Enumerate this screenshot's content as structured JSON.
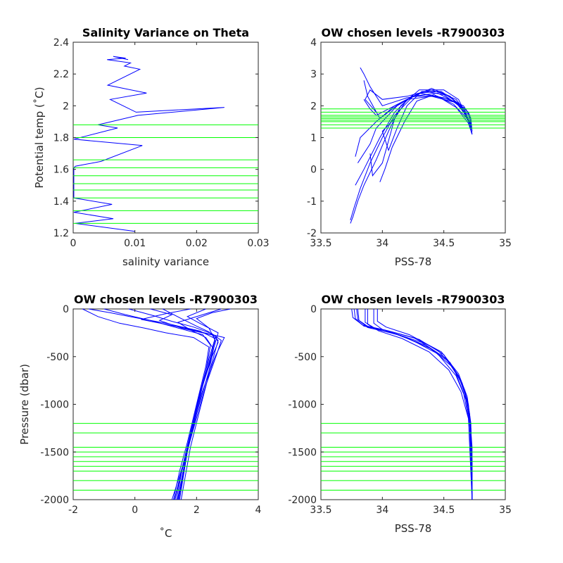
{
  "chart_data": [
    {
      "id": "tl",
      "type": "line",
      "title": "Salinity Variance on Theta",
      "xlabel": "salinity variance",
      "ylabel": "Potential temp (˚C)",
      "xlim": [
        0,
        0.03
      ],
      "ylim": [
        1.2,
        2.4
      ],
      "xticks": [
        0,
        0.01,
        0.02,
        0.03
      ],
      "xtick_labels": [
        "0",
        "0.01",
        "0.02",
        "0.03"
      ],
      "yticks": [
        1.2,
        1.4,
        1.6,
        1.8,
        2,
        2.2,
        2.4
      ],
      "ytick_labels": [
        "1.2",
        "1.4",
        "1.6",
        "1.8",
        "2",
        "2.2",
        "2.4"
      ],
      "series": [
        {
          "color": "#0000ff",
          "x": [
            0.01,
            0.0003,
            0.0065,
            0.0001,
            0.0063,
            0.0001,
            0.0001,
            0.0001,
            0.0001,
            0.0001,
            0.0001,
            0.0001,
            0.0004,
            0.0045,
            0.0112,
            0.0001,
            0.0072,
            0.004,
            0.0105,
            0.0245,
            0.0102,
            0.006,
            0.0119,
            0.0056,
            0.0108,
            0.0083,
            0.0093,
            0.0055,
            0.0085,
            0.0065,
            0.0089
          ],
          "y": [
            1.21,
            1.26,
            1.29,
            1.33,
            1.38,
            1.42,
            1.46,
            1.51,
            1.56,
            1.58,
            1.6,
            1.61,
            1.62,
            1.65,
            1.75,
            1.79,
            1.86,
            1.88,
            1.94,
            1.99,
            1.96,
            2.04,
            2.08,
            2.13,
            2.23,
            2.25,
            2.27,
            2.29,
            2.3,
            2.31,
            2.29
          ]
        }
      ],
      "hlines": {
        "color": "#00ff00",
        "values": [
          1.26,
          1.34,
          1.42,
          1.47,
          1.51,
          1.56,
          1.61,
          1.66,
          1.8,
          1.88
        ]
      }
    },
    {
      "id": "tr",
      "type": "line",
      "title": "OW chosen levels -R7900303",
      "xlabel": "PSS-78",
      "ylabel": "",
      "xlim": [
        33.5,
        35
      ],
      "ylim": [
        -2,
        4
      ],
      "xticks": [
        33.5,
        34,
        34.5,
        35
      ],
      "xtick_labels": [
        "33.5",
        "34",
        "34.5",
        "35"
      ],
      "yticks": [
        -2,
        -1,
        0,
        1,
        2,
        3,
        4
      ],
      "ytick_labels": [
        "-2",
        "-1",
        "0",
        "1",
        "2",
        "3",
        "4"
      ],
      "series": [
        {
          "color": "#0000ff",
          "x": [
            34.73,
            34.72,
            34.7,
            34.6,
            34.4,
            34.2,
            34.05,
            33.95,
            33.9,
            33.85
          ],
          "y": [
            1.2,
            1.6,
            1.8,
            2.1,
            2.3,
            2.2,
            1.9,
            1.7,
            1.9,
            2.2
          ]
        },
        {
          "color": "#0000ff",
          "x": [
            34.73,
            34.72,
            34.68,
            34.55,
            34.35,
            34.2,
            34.0,
            33.9,
            33.85,
            33.82
          ],
          "y": [
            1.1,
            1.5,
            1.9,
            2.2,
            2.35,
            2.25,
            2.0,
            2.6,
            3.0,
            3.2
          ]
        },
        {
          "color": "#0000ff",
          "x": [
            34.72,
            34.71,
            34.66,
            34.5,
            34.3,
            34.15,
            33.98,
            33.88,
            33.85
          ],
          "y": [
            1.3,
            1.7,
            2.0,
            2.25,
            2.4,
            2.1,
            1.6,
            2.3,
            2.8
          ]
        },
        {
          "color": "#0000ff",
          "x": [
            34.72,
            34.68,
            34.6,
            34.45,
            34.3,
            34.12,
            33.95,
            33.9,
            33.8
          ],
          "y": [
            1.25,
            1.8,
            2.2,
            2.45,
            2.4,
            2.0,
            1.3,
            0.8,
            0.2
          ]
        },
        {
          "color": "#0000ff",
          "x": [
            34.72,
            34.66,
            34.55,
            34.4,
            34.25,
            34.1,
            33.98,
            33.85,
            33.78
          ],
          "y": [
            1.4,
            1.9,
            2.3,
            2.5,
            2.35,
            1.8,
            1.0,
            0.0,
            -0.5
          ]
        },
        {
          "color": "#0000ff",
          "x": [
            34.71,
            34.62,
            34.5,
            34.3,
            34.15,
            34.05,
            33.95,
            33.85,
            33.8,
            33.76,
            33.74
          ],
          "y": [
            1.5,
            2.2,
            2.5,
            2.5,
            2.0,
            1.2,
            0.3,
            -0.5,
            -1.0,
            -1.5,
            -1.7
          ]
        },
        {
          "color": "#0000ff",
          "x": [
            34.7,
            34.6,
            34.45,
            34.25,
            34.1,
            34.0,
            33.9,
            33.82,
            33.77,
            33.74
          ],
          "y": [
            1.6,
            2.1,
            2.4,
            2.3,
            1.7,
            1.0,
            0.2,
            -0.6,
            -1.2,
            -1.6
          ]
        },
        {
          "color": "#0000ff",
          "x": [
            34.69,
            34.55,
            34.4,
            34.2,
            34.1,
            34.05,
            34.0,
            33.92,
            33.9
          ],
          "y": [
            1.7,
            2.3,
            2.55,
            2.2,
            1.6,
            0.9,
            0.2,
            -0.2,
            0.5
          ]
        },
        {
          "color": "#0000ff",
          "x": [
            34.7,
            34.58,
            34.42,
            34.28,
            34.18,
            34.08,
            34.02,
            33.98
          ],
          "y": [
            1.55,
            2.05,
            2.35,
            2.15,
            1.5,
            0.7,
            0.0,
            -0.4
          ]
        },
        {
          "color": "#0000ff",
          "x": [
            34.72,
            34.64,
            34.5,
            34.35,
            34.2,
            34.0,
            33.9,
            33.86,
            33.95
          ],
          "y": [
            1.35,
            1.95,
            2.35,
            2.45,
            2.3,
            2.2,
            2.5,
            2.2,
            1.8
          ]
        },
        {
          "color": "#0000ff",
          "x": [
            34.73,
            34.7,
            34.6,
            34.45,
            34.25,
            34.1,
            33.95,
            33.82,
            33.78
          ],
          "y": [
            1.1,
            1.45,
            1.95,
            2.3,
            2.3,
            2.0,
            1.5,
            1.0,
            0.4
          ]
        },
        {
          "color": "#0000ff",
          "x": [
            34.71,
            34.63,
            34.48,
            34.32,
            34.2,
            34.12,
            34.05,
            34.0,
            34.1
          ],
          "y": [
            1.45,
            2.05,
            2.45,
            2.45,
            2.0,
            1.3,
            0.6,
            1.2,
            1.6
          ]
        }
      ],
      "hlines": {
        "color": "#00ff00",
        "values": [
          1.3,
          1.4,
          1.5,
          1.55,
          1.6,
          1.65,
          1.7,
          1.8,
          1.9
        ]
      }
    },
    {
      "id": "bl",
      "type": "line",
      "title": "OW chosen levels -R7900303",
      "xlabel": "˚C",
      "ylabel": "Pressure (dbar)",
      "xlim": [
        -2,
        4
      ],
      "ylim": [
        -2000,
        0
      ],
      "xticks": [
        -2,
        0,
        2,
        4
      ],
      "xtick_labels": [
        "-2",
        "0",
        "2",
        "4"
      ],
      "yticks": [
        -2000,
        -1500,
        -1000,
        -500,
        0
      ],
      "ytick_labels": [
        "-2000",
        "-1500",
        "-1000",
        "-500",
        "0"
      ],
      "series": [
        {
          "color": "#0000ff",
          "x": [
            -1.7,
            -1.2,
            -0.5,
            0.3,
            1.0,
            1.9,
            2.4,
            2.3,
            2.0,
            1.7,
            1.45,
            1.25
          ],
          "y": [
            0,
            -80,
            -150,
            -200,
            -250,
            -300,
            -400,
            -600,
            -1000,
            -1400,
            -1700,
            -2000
          ]
        },
        {
          "color": "#0000ff",
          "x": [
            0.5,
            1.2,
            0.8,
            1.5,
            2.6,
            2.7,
            2.5,
            2.1,
            1.8,
            1.55,
            1.35
          ],
          "y": [
            0,
            -60,
            -120,
            -200,
            -280,
            -350,
            -500,
            -900,
            -1300,
            -1650,
            -2000
          ]
        },
        {
          "color": "#0000ff",
          "x": [
            2.8,
            2.2,
            1.4,
            1.8,
            2.3,
            2.55,
            2.4,
            2.0,
            1.7,
            1.45
          ],
          "y": [
            0,
            -60,
            -140,
            -220,
            -300,
            -420,
            -650,
            -1100,
            -1500,
            -2000
          ]
        },
        {
          "color": "#0000ff",
          "x": [
            -0.2,
            0.6,
            1.2,
            1.9,
            2.5,
            2.8,
            2.65,
            2.3,
            1.95,
            1.6,
            1.3
          ],
          "y": [
            0,
            -70,
            -130,
            -190,
            -260,
            -330,
            -480,
            -800,
            -1200,
            -1600,
            -2000
          ]
        },
        {
          "color": "#0000ff",
          "x": [
            1.8,
            1.0,
            0.2,
            1.6,
            2.9,
            2.6,
            2.15,
            1.85,
            1.5,
            1.2
          ],
          "y": [
            0,
            -50,
            -110,
            -200,
            -300,
            -500,
            -900,
            -1300,
            -1700,
            -2000
          ]
        },
        {
          "color": "#0000ff",
          "x": [
            -1.0,
            -0.3,
            0.5,
            1.4,
            2.2,
            2.45,
            2.3,
            1.95,
            1.65,
            1.4
          ],
          "y": [
            0,
            -60,
            -120,
            -200,
            -270,
            -380,
            -650,
            -1100,
            -1550,
            -2000
          ]
        },
        {
          "color": "#0000ff",
          "x": [
            2.3,
            1.7,
            2.1,
            2.7,
            2.55,
            2.2,
            1.9,
            1.55,
            1.28
          ],
          "y": [
            0,
            -80,
            -150,
            -250,
            -420,
            -800,
            -1200,
            -1650,
            -2000
          ]
        },
        {
          "color": "#0000ff",
          "x": [
            0.9,
            1.5,
            2.0,
            2.4,
            2.7,
            2.5,
            2.15,
            1.8,
            1.5
          ],
          "y": [
            0,
            -100,
            -180,
            -240,
            -330,
            -560,
            -1000,
            -1450,
            -2000
          ]
        },
        {
          "color": "#0000ff",
          "x": [
            3.1,
            2.5,
            2.0,
            2.4,
            2.6,
            2.35,
            2.0,
            1.7,
            1.42
          ],
          "y": [
            0,
            -40,
            -100,
            -200,
            -330,
            -620,
            -1050,
            -1500,
            -2000
          ]
        },
        {
          "color": "#0000ff",
          "x": [
            -1.5,
            -0.8,
            0.0,
            1.0,
            2.1,
            2.6,
            2.4,
            2.05,
            1.72,
            1.38
          ],
          "y": [
            0,
            -40,
            -90,
            -150,
            -230,
            -310,
            -520,
            -950,
            -1450,
            -2000
          ]
        }
      ],
      "hlines": {
        "color": "#00ff00",
        "values": [
          -1200,
          -1300,
          -1450,
          -1500,
          -1550,
          -1600,
          -1650,
          -1700,
          -1800,
          -1900
        ]
      }
    },
    {
      "id": "br",
      "type": "line",
      "title": "OW chosen levels -R7900303",
      "xlabel": "PSS-78",
      "ylabel": "",
      "xlim": [
        33.5,
        35
      ],
      "ylim": [
        -2000,
        0
      ],
      "xticks": [
        33.5,
        34,
        34.5,
        35
      ],
      "xtick_labels": [
        "33.5",
        "34",
        "34.5",
        "35"
      ],
      "yticks": [
        -2000,
        -1500,
        -1000,
        -500,
        0
      ],
      "ytick_labels": [
        "-2000",
        "-1500",
        "-1000",
        "-500",
        "0"
      ],
      "series": [
        {
          "color": "#0000ff",
          "x": [
            33.77,
            33.78,
            33.85,
            34.05,
            34.3,
            34.5,
            34.62,
            34.69,
            34.72,
            34.73,
            34.73
          ],
          "y": [
            0,
            -100,
            -180,
            -230,
            -320,
            -480,
            -700,
            -950,
            -1250,
            -1600,
            -2000
          ]
        },
        {
          "color": "#0000ff",
          "x": [
            33.8,
            33.81,
            33.9,
            34.1,
            34.35,
            34.55,
            34.65,
            34.7,
            34.72,
            34.73
          ],
          "y": [
            0,
            -120,
            -200,
            -260,
            -380,
            -560,
            -780,
            -1050,
            -1400,
            -2000
          ]
        },
        {
          "color": "#0000ff",
          "x": [
            33.86,
            33.86,
            33.95,
            34.15,
            34.4,
            34.58,
            34.67,
            34.71,
            34.73,
            34.73
          ],
          "y": [
            0,
            -140,
            -210,
            -280,
            -420,
            -620,
            -850,
            -1100,
            -1450,
            -2000
          ]
        },
        {
          "color": "#0000ff",
          "x": [
            33.93,
            33.93,
            34.0,
            34.2,
            34.45,
            34.6,
            34.68,
            34.72,
            34.73
          ],
          "y": [
            0,
            -150,
            -215,
            -300,
            -470,
            -700,
            -950,
            -1250,
            -2000
          ]
        },
        {
          "color": "#0000ff",
          "x": [
            33.75,
            33.76,
            33.84,
            34.02,
            34.25,
            34.45,
            34.58,
            34.66,
            34.71,
            34.73
          ],
          "y": [
            0,
            -90,
            -170,
            -220,
            -300,
            -430,
            -620,
            -880,
            -1200,
            -2000
          ]
        },
        {
          "color": "#0000ff",
          "x": [
            33.96,
            33.96,
            34.03,
            34.22,
            34.48,
            34.62,
            34.69,
            34.72,
            34.73
          ],
          "y": [
            0,
            -130,
            -190,
            -270,
            -450,
            -680,
            -920,
            -1200,
            -2000
          ]
        },
        {
          "color": "#0000ff",
          "x": [
            33.88,
            33.88,
            33.97,
            34.16,
            34.38,
            34.54,
            34.64,
            34.7,
            34.73
          ],
          "y": [
            0,
            -160,
            -230,
            -310,
            -450,
            -640,
            -870,
            -1150,
            -2000
          ]
        },
        {
          "color": "#0000ff",
          "x": [
            33.79,
            33.8,
            33.88,
            34.08,
            34.32,
            34.52,
            34.63,
            34.7,
            34.72,
            34.73
          ],
          "y": [
            0,
            -110,
            -195,
            -250,
            -350,
            -520,
            -740,
            -1000,
            -1350,
            -2000
          ]
        }
      ],
      "hlines": {
        "color": "#00ff00",
        "values": [
          -1200,
          -1300,
          -1450,
          -1500,
          -1550,
          -1600,
          -1650,
          -1700,
          -1800,
          -1900
        ]
      }
    }
  ]
}
